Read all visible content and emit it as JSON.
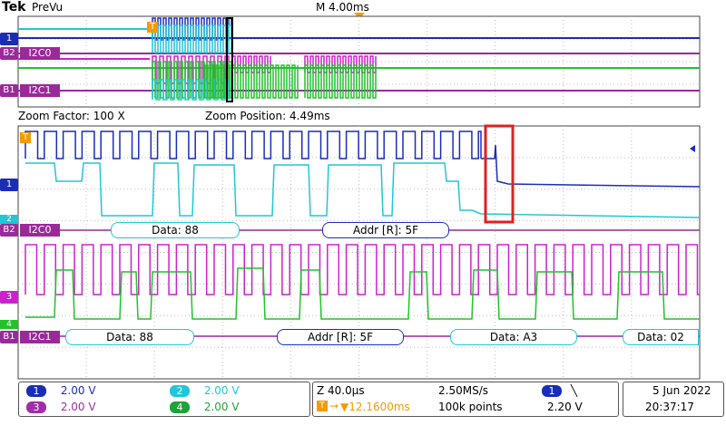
{
  "header": {
    "logo": "Tek",
    "app_name": "PreVu",
    "horizontal_scale": "M 4.00ms"
  },
  "overview": {
    "bus_labels": [
      "I2C0",
      "I2C1"
    ],
    "channel_markers": [
      "1",
      "B2",
      "B1"
    ],
    "trigger_marker": "T"
  },
  "zoom": {
    "factor_label": "Zoom Factor: 100 X",
    "position_label": "Zoom Position: 4.49ms"
  },
  "main": {
    "channel_markers": [
      "1",
      "2",
      "B2",
      "3",
      "4",
      "B1"
    ],
    "trigger_marker": "T",
    "i2c0": {
      "label": "I2C0",
      "packets": [
        "Data: 88",
        "Addr [R]: 5F"
      ]
    },
    "i2c1": {
      "label": "I2C1",
      "packets": [
        "Data: 88",
        "Addr [R]: 5F",
        "Data: A3",
        "Data: 02"
      ]
    }
  },
  "status": {
    "channels": [
      {
        "num": "1",
        "scale": "2.00 V",
        "color": "#1a2db8"
      },
      {
        "num": "2",
        "scale": "2.00 V",
        "color": "#22c6d6"
      },
      {
        "num": "3",
        "scale": "2.00 V",
        "color": "#a12ea8"
      },
      {
        "num": "4",
        "scale": "2.00 V",
        "color": "#1fa23a"
      }
    ],
    "timebase": "Z 40.0µs",
    "sample_rate": "2.50MS/s",
    "trigger_position": "▼12.1600ms",
    "record_length": "100k points",
    "trigger_channel": "1",
    "trigger_slope": "╲",
    "trigger_level": "2.20 V",
    "date": "5 Jun  2022",
    "time": "20:37:17"
  },
  "colors": {
    "ch1": "#1a2db8",
    "ch2": "#22c6d6",
    "ch3": "#cc22cc",
    "ch4": "#22c22c",
    "bus": "#9a2a9a",
    "highlight": "#e02020",
    "trigger": "#f59b00"
  }
}
